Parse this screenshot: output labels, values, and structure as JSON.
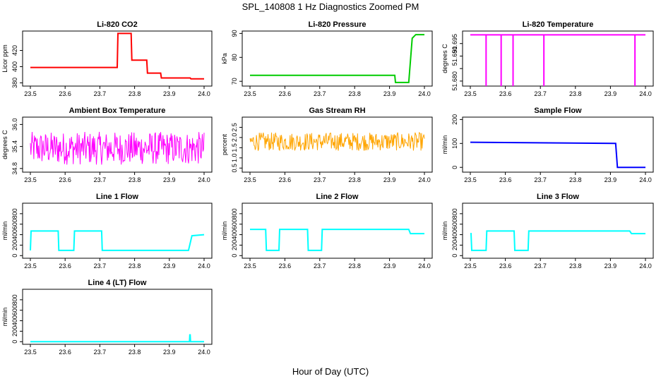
{
  "figure": {
    "title": "SPL_140808  1 Hz Diagnostics Zoomed PM",
    "xlabel": "Hour of Day (UTC)"
  },
  "chart_data": [
    {
      "type": "line",
      "title": "Li-820 CO2",
      "ylabel": "Licor ppm",
      "color": "#ff0000",
      "xlim": [
        23.5,
        24.0
      ],
      "ylim": [
        376,
        444
      ],
      "xticks": [
        "23.5",
        "23.6",
        "23.7",
        "23.8",
        "23.9",
        "24.0"
      ],
      "yticks": [
        380,
        400,
        420
      ],
      "ytick_labels": [
        "380",
        "400",
        "420"
      ],
      "x": [
        23.5,
        23.75,
        23.752,
        23.79,
        23.792,
        23.835,
        23.837,
        23.875,
        23.877,
        23.96,
        23.962,
        24.0
      ],
      "y": [
        399,
        399,
        441,
        441,
        408,
        408,
        392,
        392,
        386,
        386,
        385,
        385
      ]
    },
    {
      "type": "line",
      "title": "Li-820 Pressure",
      "ylabel": "kPa",
      "color": "#00cc00",
      "xlim": [
        23.5,
        24.0
      ],
      "ylim": [
        68,
        91
      ],
      "xticks": [
        "23.5",
        "23.6",
        "23.7",
        "23.8",
        "23.9",
        "24.0"
      ],
      "yticks": [
        70,
        80,
        90
      ],
      "ytick_labels": [
        "70",
        "80",
        "90"
      ],
      "x": [
        23.5,
        23.915,
        23.917,
        23.955,
        23.965,
        23.975,
        24.0
      ],
      "y": [
        72.5,
        72.5,
        69.5,
        69.5,
        88,
        89.5,
        89.5
      ]
    },
    {
      "type": "line",
      "title": "Li-820 Temperature",
      "ylabel": "degrees C",
      "color": "#ff00ff",
      "xlim": [
        23.5,
        24.0
      ],
      "ylim": [
        51.678,
        51.7
      ],
      "xticks": [
        "23.5",
        "23.6",
        "23.7",
        "23.8",
        "23.9",
        "24.0"
      ],
      "yticks": [
        51.68,
        51.685,
        51.69,
        51.695
      ],
      "ytick_labels": [
        "51.680",
        "",
        "51.690",
        "51.695"
      ],
      "baseline": 51.6985,
      "dips": [
        {
          "x": 23.545,
          "y": 51.678
        },
        {
          "x": 23.588,
          "y": 51.678
        },
        {
          "x": 23.622,
          "y": 51.678
        },
        {
          "x": 23.71,
          "y": 51.678
        },
        {
          "x": 23.97,
          "y": 51.678
        }
      ]
    },
    {
      "type": "line",
      "title": "Ambient Box Temperature",
      "ylabel": "degrees C",
      "color": "#ff00ff",
      "xlim": [
        23.5,
        24.0
      ],
      "ylim": [
        34.7,
        36.2
      ],
      "xticks": [
        "23.5",
        "23.6",
        "23.7",
        "23.8",
        "23.9",
        "24.0"
      ],
      "yticks": [
        34.8,
        35.4,
        36.0
      ],
      "ytick_labels": [
        "34.8",
        "35.4",
        "36.0"
      ],
      "noise": {
        "center": 35.35,
        "half_range": 0.45
      }
    },
    {
      "type": "line",
      "title": "Gas Stream RH",
      "ylabel": "percent",
      "color": "#ffa500",
      "xlim": [
        23.5,
        24.0
      ],
      "ylim": [
        0.3,
        3.0
      ],
      "xticks": [
        "23.5",
        "23.6",
        "23.7",
        "23.8",
        "23.9",
        "24.0"
      ],
      "yticks": [
        0.5,
        1.0,
        1.5,
        2.0,
        2.5
      ],
      "ytick_labels": [
        "0.5",
        "1.0",
        "1.5",
        "2.0",
        "2.5"
      ],
      "noise": {
        "center": 1.8,
        "half_range": 0.45
      }
    },
    {
      "type": "line",
      "title": "Sample Flow",
      "ylabel": "ml/min",
      "color": "#0000ff",
      "xlim": [
        23.5,
        24.0
      ],
      "ylim": [
        -20,
        210
      ],
      "xticks": [
        "23.5",
        "23.6",
        "23.7",
        "23.8",
        "23.9",
        "24.0"
      ],
      "yticks": [
        0,
        100,
        200
      ],
      "ytick_labels": [
        "0",
        "100",
        "200"
      ],
      "x": [
        23.5,
        23.915,
        23.92,
        24.0
      ],
      "y": [
        105,
        100,
        0,
        0
      ]
    },
    {
      "type": "line",
      "title": "Line 1 Flow",
      "ylabel": "ml/min",
      "color": "#00ffff",
      "xlim": [
        23.5,
        24.0
      ],
      "ylim": [
        -50,
        1000
      ],
      "xticks": [
        "23.5",
        "23.6",
        "23.7",
        "23.8",
        "23.9",
        "24.0"
      ],
      "yticks": [
        0,
        200,
        400,
        600,
        800
      ],
      "ytick_labels": [
        "0",
        "200",
        "400",
        "600",
        "800"
      ],
      "x": [
        23.5,
        23.502,
        23.58,
        23.582,
        23.625,
        23.627,
        23.705,
        23.707,
        23.955,
        23.965,
        24.0
      ],
      "y": [
        100,
        470,
        470,
        100,
        100,
        470,
        470,
        100,
        100,
        380,
        400
      ]
    },
    {
      "type": "line",
      "title": "Line 2 Flow",
      "ylabel": "ml/min",
      "color": "#00ffff",
      "xlim": [
        23.5,
        24.0
      ],
      "ylim": [
        -50,
        1000
      ],
      "xticks": [
        "23.5",
        "23.6",
        "23.7",
        "23.8",
        "23.9",
        "24.0"
      ],
      "yticks": [
        0,
        200,
        400,
        600,
        800
      ],
      "ytick_labels": [
        "0",
        "200",
        "400",
        "600",
        "800"
      ],
      "x": [
        23.5,
        23.545,
        23.547,
        23.583,
        23.585,
        23.665,
        23.667,
        23.705,
        23.707,
        23.955,
        23.96,
        24.0
      ],
      "y": [
        500,
        500,
        100,
        100,
        500,
        500,
        100,
        100,
        500,
        500,
        420,
        420
      ]
    },
    {
      "type": "line",
      "title": "Line 3 Flow",
      "ylabel": "ml/min",
      "color": "#00ffff",
      "xlim": [
        23.5,
        24.0
      ],
      "ylim": [
        -50,
        1000
      ],
      "xticks": [
        "23.5",
        "23.6",
        "23.7",
        "23.8",
        "23.9",
        "24.0"
      ],
      "yticks": [
        0,
        200,
        400,
        600,
        800
      ],
      "ytick_labels": [
        "0",
        "200",
        "400",
        "600",
        "800"
      ],
      "x": [
        23.5,
        23.502,
        23.504,
        23.545,
        23.547,
        23.625,
        23.627,
        23.665,
        23.667,
        23.955,
        23.96,
        24.0
      ],
      "y": [
        420,
        420,
        100,
        100,
        470,
        470,
        100,
        100,
        470,
        470,
        420,
        420
      ]
    },
    {
      "type": "line",
      "title": "Line 4 (LT) Flow",
      "ylabel": "ml/min",
      "color": "#00ffff",
      "xlim": [
        23.5,
        24.0
      ],
      "ylim": [
        -50,
        1000
      ],
      "xticks": [
        "23.5",
        "23.6",
        "23.7",
        "23.8",
        "23.9",
        "24.0"
      ],
      "yticks": [
        0,
        200,
        400,
        600,
        800
      ],
      "ytick_labels": [
        "0",
        "200",
        "400",
        "600",
        "800"
      ],
      "x": [
        23.5,
        23.958,
        23.959,
        23.96,
        23.961,
        24.0
      ],
      "y": [
        0,
        0,
        130,
        130,
        0,
        0
      ]
    }
  ]
}
